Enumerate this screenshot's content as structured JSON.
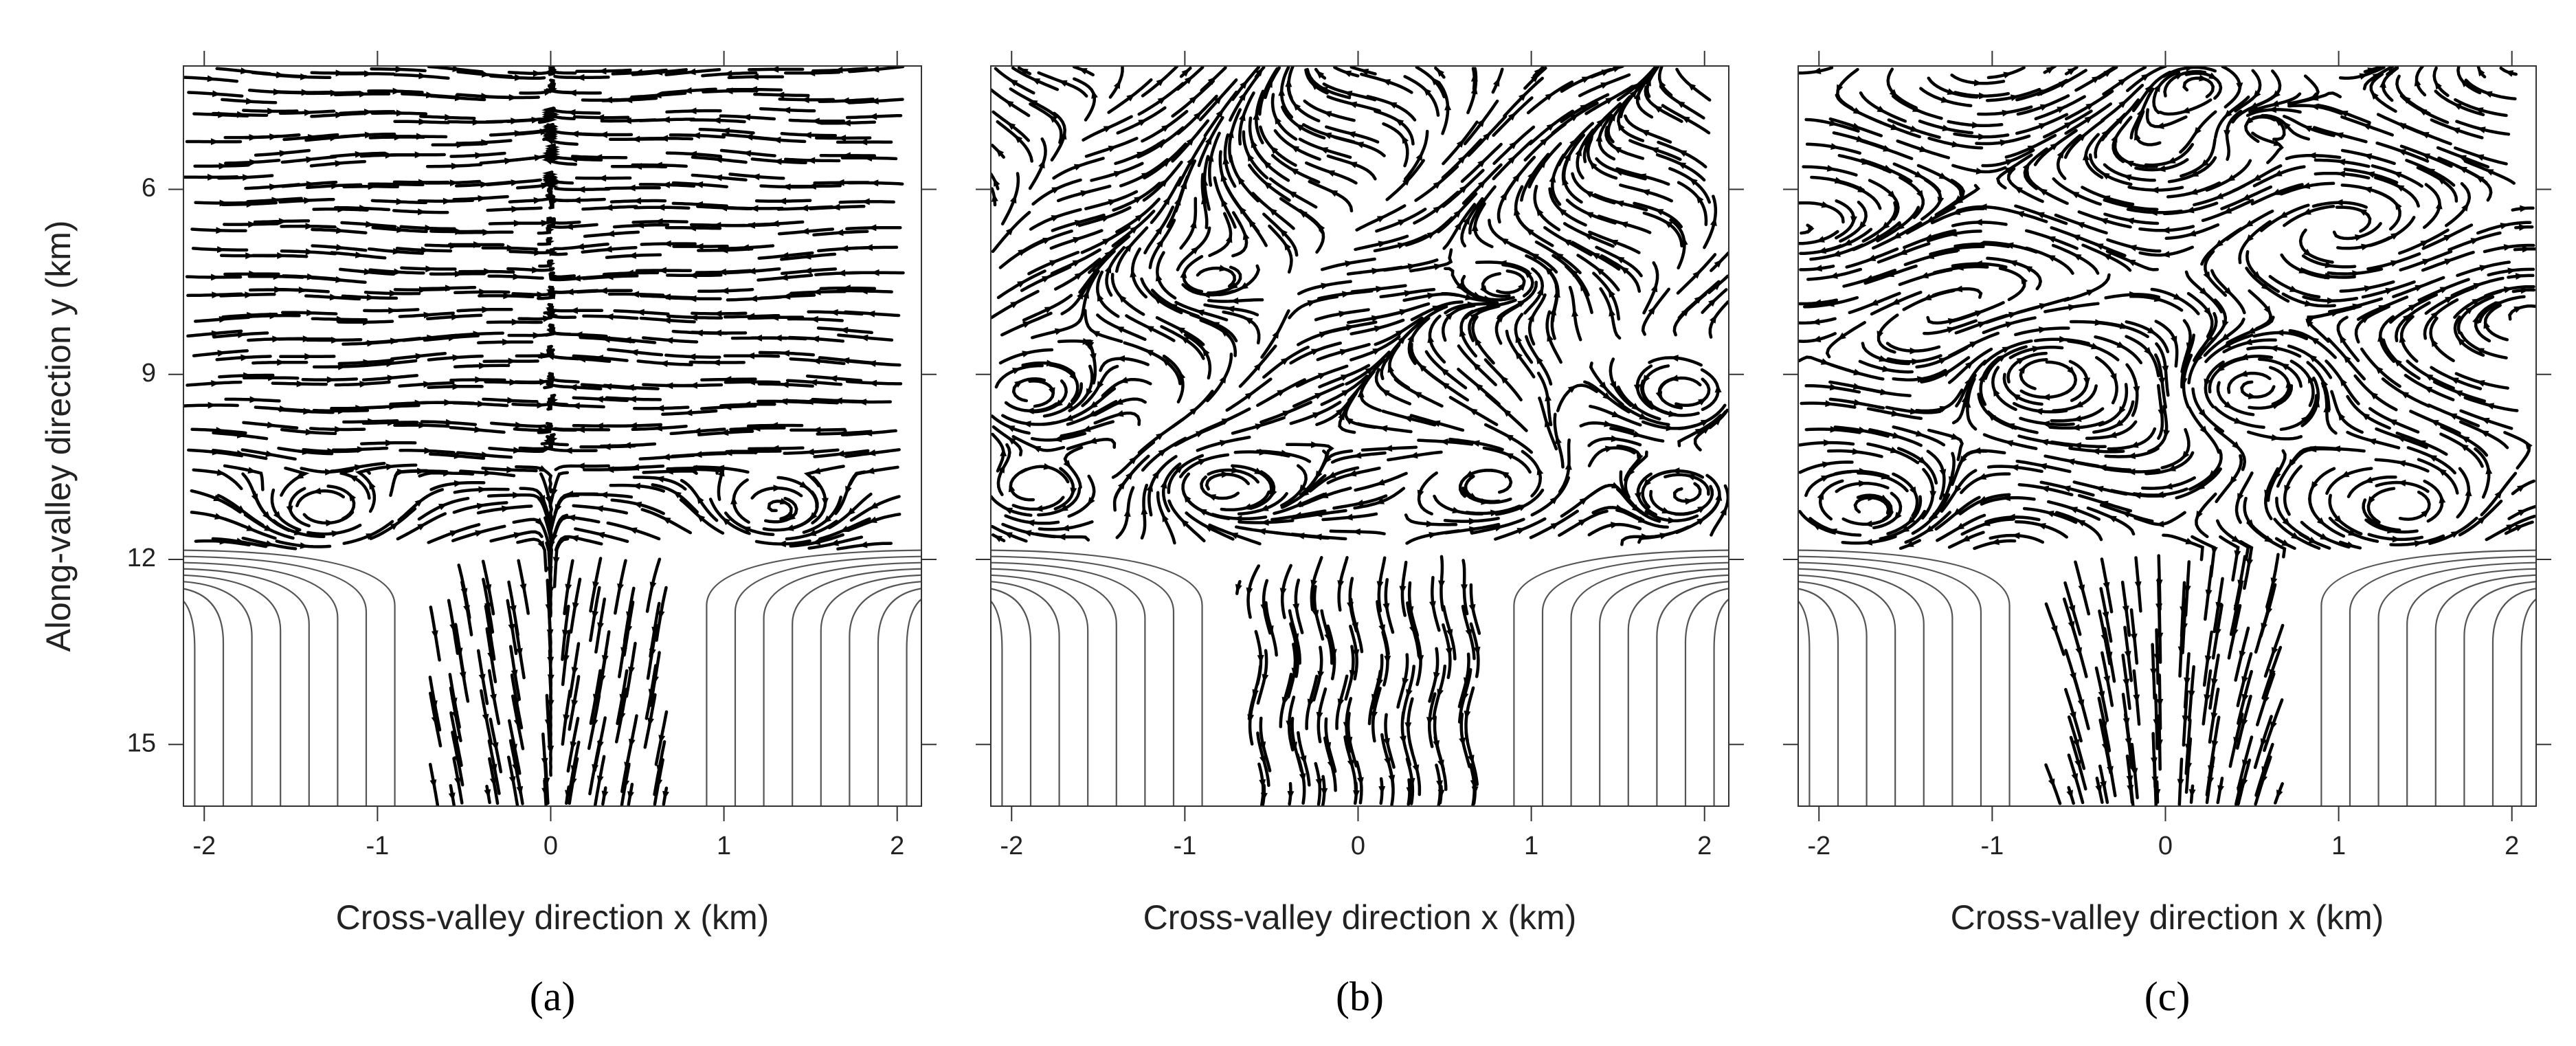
{
  "chart_data": [
    {
      "type": "streamline",
      "caption": "(a)",
      "xlabel": "Cross-valley direction x (km)",
      "ylabel": "Along-valley direction y (km)",
      "xlim": [
        -2.12,
        2.14
      ],
      "ylim": [
        4,
        16
      ],
      "yreverse": true,
      "xticks": [
        -2,
        -1,
        0,
        1,
        2
      ],
      "yticks": [
        6,
        9,
        12,
        15
      ],
      "color": "#000000"
    },
    {
      "type": "streamline",
      "caption": "(b)",
      "xlabel": "Cross-valley direction x (km)",
      "xlim": [
        -2.12,
        2.14
      ],
      "ylim": [
        4,
        16
      ],
      "yreverse": true,
      "xticks": [
        -2,
        -1,
        0,
        1,
        2
      ],
      "yticks": [
        6,
        9,
        12,
        15
      ],
      "color": "#000000"
    },
    {
      "type": "streamline",
      "caption": "(c)",
      "xlabel": "Cross-valley direction x (km)",
      "xlim": [
        -2.12,
        2.14
      ],
      "ylim": [
        4,
        16
      ],
      "yreverse": true,
      "xticks": [
        -2,
        -1,
        0,
        1,
        2
      ],
      "yticks": [
        6,
        9,
        12,
        15
      ],
      "color": "#000000"
    }
  ]
}
